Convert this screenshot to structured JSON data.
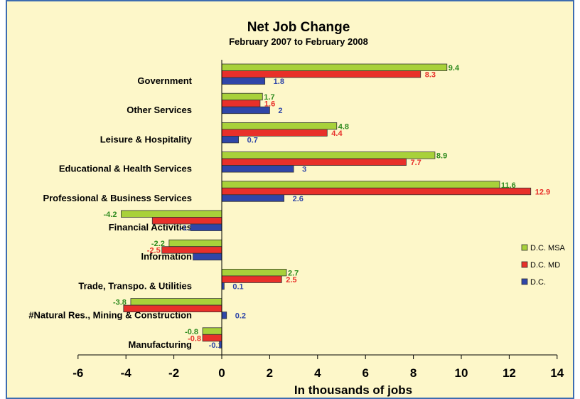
{
  "chart_data": {
    "type": "bar",
    "orientation": "horizontal",
    "title": "Net Job Change",
    "subtitle": "February 2007 to February 2008",
    "xlabel": "In thousands of jobs",
    "ylabel": "",
    "xlim": [
      -6,
      14
    ],
    "xticks": [
      -6,
      -4,
      -2,
      0,
      2,
      4,
      6,
      8,
      10,
      12,
      14
    ],
    "grid": false,
    "legend_position": "right",
    "categories": [
      "Government",
      "Other Services",
      "Leisure & Hospitality",
      "Educational & Health Services",
      "Professional & Business Services",
      "Financial Activities",
      "Information",
      "Trade, Transpo. & Utilities",
      "#Natural Res., Mining & Construction",
      "Manufacturing"
    ],
    "series": [
      {
        "name": "D.C. MSA",
        "color": "#a8d13a",
        "label_color": "#2e8b1e",
        "values": [
          9.4,
          1.7,
          4.8,
          8.9,
          11.6,
          -4.2,
          -2.2,
          2.7,
          -3.8,
          -0.8
        ],
        "labels": [
          "9.4",
          "1.7",
          "4.8",
          "8.9",
          "11.6",
          "-4.2",
          "-2.2",
          "2.7",
          "-3.8",
          "-0.8"
        ]
      },
      {
        "name": "D.C. MD",
        "color": "#e8302a",
        "label_color": "#e8302a",
        "values": [
          8.3,
          1.6,
          4.4,
          7.7,
          12.9,
          -2.9,
          -2.5,
          2.5,
          -4.1,
          -0.8
        ],
        "labels": [
          "8.3",
          "1.6",
          "4.4",
          "7.7",
          "12.9",
          "",
          "-2.5",
          "2.5",
          "",
          "-0.8"
        ]
      },
      {
        "name": "D.C.",
        "color": "#2f46a8",
        "label_color": "#2f46a8",
        "values": [
          1.8,
          2,
          0.7,
          3,
          2.6,
          -1.3,
          -1.2,
          0.1,
          0.2,
          -0.1
        ],
        "labels": [
          "1.8",
          "2",
          "0.7",
          "3",
          "2.6",
          "-1.3",
          "",
          "0.1",
          "0.2",
          "-0.1"
        ]
      }
    ]
  }
}
